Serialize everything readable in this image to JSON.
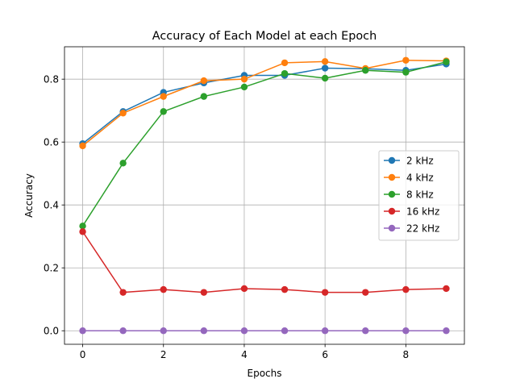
{
  "chart_data": {
    "type": "line",
    "title": "Accuracy of Each Model at each Epoch",
    "xlabel": "Epochs",
    "ylabel": "Accuracy",
    "x": [
      0,
      1,
      2,
      3,
      4,
      5,
      6,
      7,
      8,
      9
    ],
    "xlim": [
      -0.45,
      9.45
    ],
    "ylim": [
      -0.043,
      0.903
    ],
    "xticks": [
      0,
      2,
      4,
      6,
      8
    ],
    "yticks": [
      0.0,
      0.2,
      0.4,
      0.6,
      0.8
    ],
    "xtick_labels": [
      "0",
      "2",
      "4",
      "6",
      "8"
    ],
    "ytick_labels": [
      "0.0",
      "0.2",
      "0.4",
      "0.6",
      "0.8"
    ],
    "grid": true,
    "legend_position": "right",
    "series": [
      {
        "name": "2 kHz",
        "color": "#1f77b4",
        "values": [
          0.595,
          0.697,
          0.758,
          0.788,
          0.812,
          0.812,
          0.835,
          0.833,
          0.828,
          0.848
        ]
      },
      {
        "name": "4 kHz",
        "color": "#ff7f0e",
        "values": [
          0.588,
          0.692,
          0.745,
          0.795,
          0.8,
          0.852,
          0.856,
          0.834,
          0.86,
          0.858
        ]
      },
      {
        "name": "8 kHz",
        "color": "#2ca02c",
        "values": [
          0.333,
          0.533,
          0.697,
          0.745,
          0.775,
          0.818,
          0.803,
          0.828,
          0.822,
          0.855
        ]
      },
      {
        "name": "16 kHz",
        "color": "#d62728",
        "values": [
          0.315,
          0.122,
          0.131,
          0.122,
          0.134,
          0.131,
          0.122,
          0.122,
          0.131,
          0.134
        ]
      },
      {
        "name": "22 kHz",
        "color": "#9467bd",
        "values": [
          0.0,
          0.0,
          0.0,
          0.0,
          0.0,
          0.0,
          0.0,
          0.0,
          0.0,
          0.0
        ]
      }
    ]
  }
}
